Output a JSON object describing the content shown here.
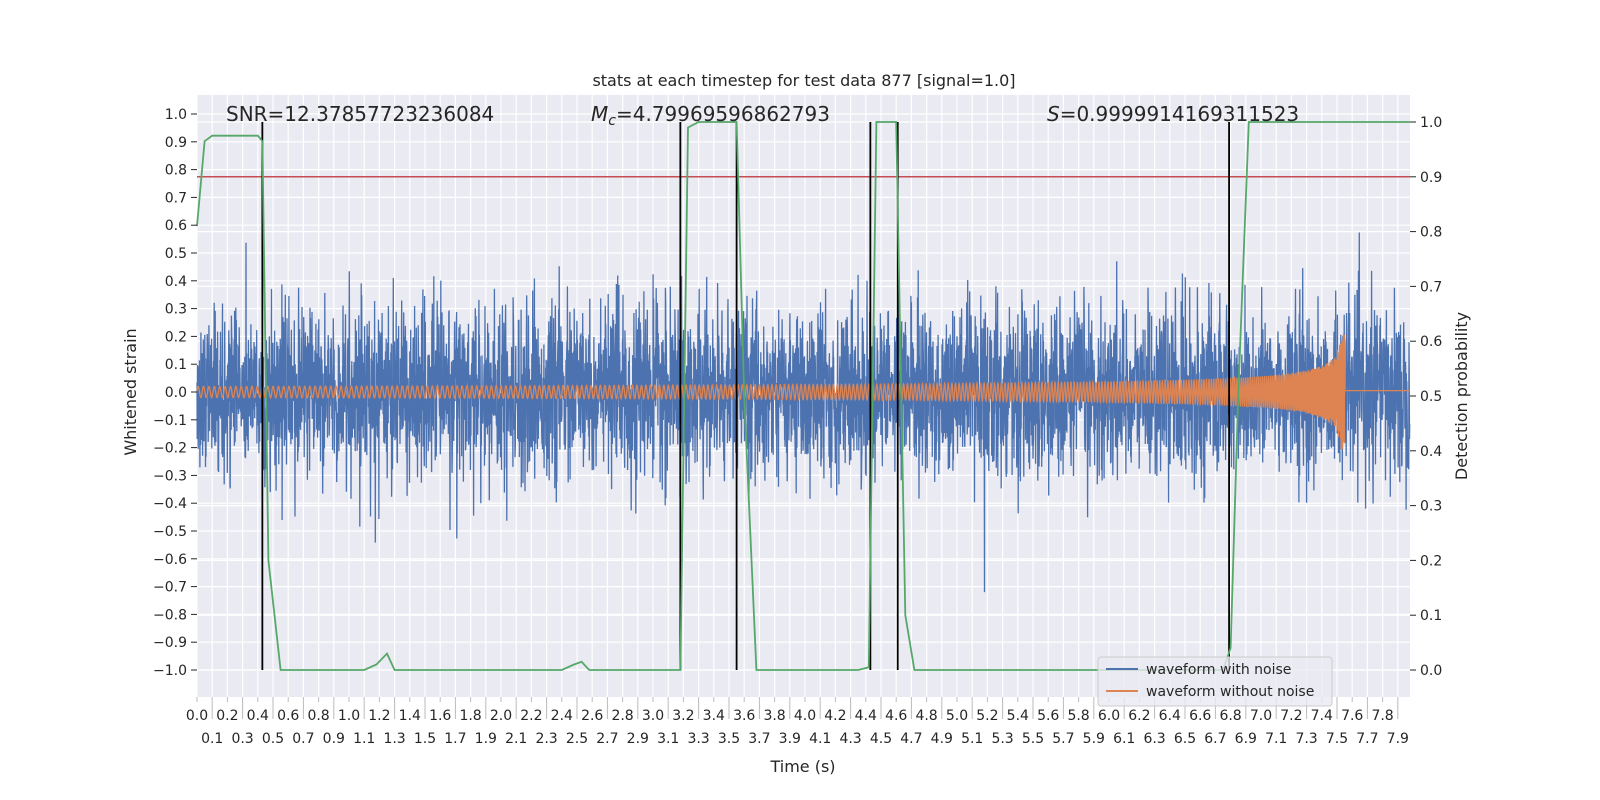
{
  "chart_data": {
    "type": "line",
    "title": "stats at each timestep for test data 877 [signal=1.0]",
    "xlabel": "Time (s)",
    "ylabel": "Whitened strain",
    "ylabel_right": "Detection probability",
    "xlim": [
      0,
      7.98
    ],
    "ylim": [
      -1.097,
      1.068
    ],
    "ylim_right": [
      -0.049,
      1.049
    ],
    "grid": true,
    "legend_placement": "lower-right",
    "x_tick_labels": [
      "0.0",
      "0.1",
      "0.2",
      "0.3",
      "0.4",
      "0.5",
      "0.6",
      "0.7",
      "0.8",
      "0.9",
      "1.0",
      "1.1",
      "1.2",
      "1.3",
      "1.4",
      "1.5",
      "1.6",
      "1.7",
      "1.8",
      "1.9",
      "2.0",
      "2.1",
      "2.2",
      "2.3",
      "2.4",
      "2.5",
      "2.6",
      "2.7",
      "2.8",
      "2.9",
      "3.0",
      "3.1",
      "3.2",
      "3.3",
      "3.4",
      "3.5",
      "3.6",
      "3.7",
      "3.8",
      "3.9",
      "4.0",
      "4.1",
      "4.2",
      "4.3",
      "4.4",
      "4.5",
      "4.6",
      "4.7",
      "4.8",
      "4.9",
      "5.0",
      "5.1",
      "5.2",
      "5.3",
      "5.4",
      "5.5",
      "5.6",
      "5.7",
      "5.8",
      "5.9",
      "6.0",
      "6.1",
      "6.2",
      "6.3",
      "6.4",
      "6.5",
      "6.6",
      "6.7",
      "6.8",
      "6.9",
      "7.0",
      "7.1",
      "7.2",
      "7.3",
      "7.4",
      "7.5",
      "7.6",
      "7.7",
      "7.8",
      "7.9"
    ],
    "y_tick_labels": [
      "−1.0",
      "−0.9",
      "−0.8",
      "−0.7",
      "−0.6",
      "−0.5",
      "−0.4",
      "−0.3",
      "−0.2",
      "−0.1",
      "0.0",
      "0.1",
      "0.2",
      "0.3",
      "0.4",
      "0.5",
      "0.6",
      "0.7",
      "0.8",
      "0.9",
      "1.0"
    ],
    "y_right_tick_labels": [
      "0.0",
      "0.1",
      "0.2",
      "0.3",
      "0.4",
      "0.5",
      "0.6",
      "0.7",
      "0.8",
      "0.9",
      "1.0"
    ],
    "annotations": {
      "snr": "SNR=12.37857723236084",
      "mc_symbol": "M",
      "mc_sub": "c",
      "mc_value": "=4.79969596862793",
      "s_symbol": "S",
      "s_value": "=0.9999914169311523"
    },
    "series": [
      {
        "name": "waveform with noise",
        "color": "#4c72b0",
        "axis": "left",
        "kind": "gaussian-noise",
        "std": 0.15,
        "samples": 5000
      },
      {
        "name": "waveform without noise",
        "color": "#dd8452",
        "axis": "left",
        "kind": "chirp",
        "initial_amplitude": 0.02,
        "peak_amplitude": 0.21,
        "merger_time": 7.55,
        "post_merger_value": 0.005,
        "f0": 28
      },
      {
        "name": "detection probability",
        "color": "#55a868",
        "axis": "right",
        "x": [
          0.0,
          0.05,
          0.1,
          0.4,
          0.43,
          0.47,
          0.55,
          1.1,
          1.18,
          1.25,
          1.3,
          2.4,
          2.48,
          2.53,
          2.58,
          3.18,
          3.23,
          3.3,
          3.55,
          3.6,
          3.68,
          4.35,
          4.42,
          4.47,
          4.6,
          4.66,
          4.72,
          6.75,
          6.8,
          6.85,
          6.92,
          7.98
        ],
        "y": [
          0.81,
          0.965,
          0.975,
          0.975,
          0.965,
          0.2,
          0.0,
          0.0,
          0.01,
          0.03,
          0.0,
          0.0,
          0.01,
          0.015,
          0.0,
          0.0,
          0.99,
          1.0,
          1.0,
          0.5,
          0.0,
          0.0,
          0.005,
          1.0,
          1.0,
          0.1,
          0.0,
          0.0,
          0.04,
          0.5,
          1.0,
          1.0
        ]
      }
    ],
    "threshold": {
      "value": 0.9,
      "axis": "right",
      "color": "#c44e52"
    },
    "detection_markers": {
      "times": [
        0.43,
        3.18,
        3.55,
        4.43,
        4.61,
        6.79
      ],
      "color": "#000000"
    },
    "legend": [
      "waveform with noise",
      "waveform without noise"
    ]
  }
}
